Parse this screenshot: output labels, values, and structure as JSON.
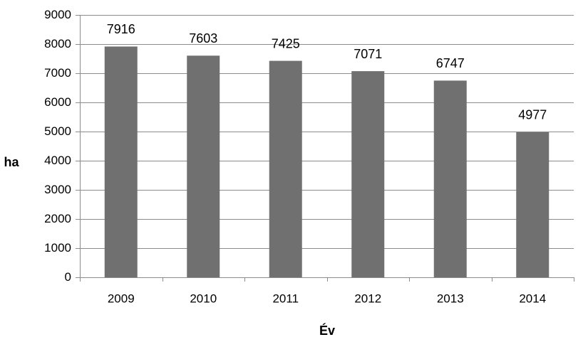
{
  "chart_data": {
    "type": "bar",
    "categories": [
      "2009",
      "2010",
      "2011",
      "2012",
      "2013",
      "2014"
    ],
    "values": [
      7916,
      7603,
      7425,
      7071,
      6747,
      4977
    ],
    "data_labels": [
      "7916",
      "7603",
      "7425",
      "7071",
      "6747",
      "4977"
    ],
    "title": "",
    "xlabel": "Év",
    "ylabel": "ha",
    "ylim": [
      0,
      9000
    ],
    "yticks": [
      0,
      1000,
      2000,
      3000,
      4000,
      5000,
      6000,
      7000,
      8000,
      9000
    ],
    "ytick_labels": [
      "0",
      "1000",
      "2000",
      "3000",
      "4000",
      "5000",
      "6000",
      "7000",
      "8000",
      "9000"
    ],
    "grid": true,
    "legend": "none",
    "colors": {
      "bar": "#707070",
      "grid": "#8c8c8c",
      "axis": "#8c8c8c",
      "text": "#000000"
    }
  }
}
